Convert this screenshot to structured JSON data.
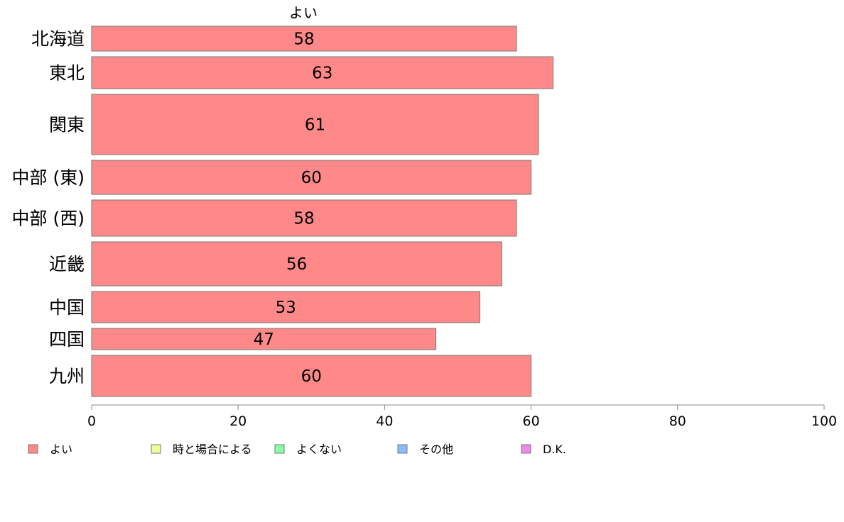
{
  "chart_data": {
    "type": "bar",
    "orientation": "horizontal",
    "column_header": "よい",
    "categories": [
      "北海道",
      "東北",
      "関東",
      "中部 (東)",
      "中部 (西)",
      "近畿",
      "中国",
      "四国",
      "九州"
    ],
    "values": [
      58,
      63,
      61,
      60,
      58,
      56,
      53,
      47,
      60
    ],
    "xlim": [
      0,
      100
    ],
    "x_ticks": [
      0,
      20,
      40,
      60,
      80,
      100
    ],
    "grid": false,
    "legend": {
      "placement": "bottom",
      "entries": [
        {
          "label": "よい",
          "color": "#ff8888"
        },
        {
          "label": "時と場合による",
          "color": "#eeff99"
        },
        {
          "label": "よくない",
          "color": "#88ffaa"
        },
        {
          "label": "その他",
          "color": "#88bbff"
        },
        {
          "label": "D.K.",
          "color": "#ee88ee"
        }
      ]
    },
    "bar_color": "#ff8888",
    "bar_stroke": "#777777"
  }
}
